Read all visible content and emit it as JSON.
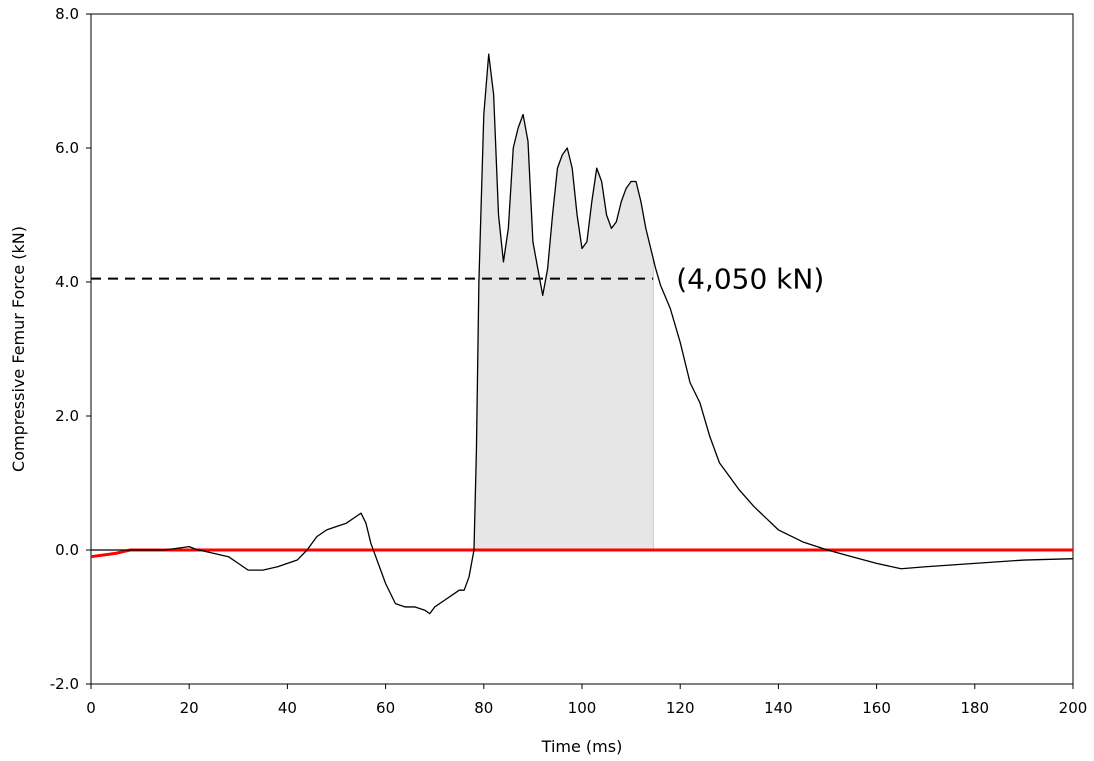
{
  "chart_data": {
    "type": "line",
    "title": "",
    "xlabel": "Time (ms)",
    "ylabel": "Compressive Femur Force (kN)",
    "xlim": [
      0,
      200
    ],
    "ylim": [
      -2.0,
      8.0
    ],
    "x_ticks": [
      0,
      20,
      40,
      60,
      80,
      100,
      120,
      140,
      160,
      180,
      200
    ],
    "x_tick_labels": [
      "0",
      "20",
      "40",
      "60",
      "80",
      "100",
      "120",
      "140",
      "160",
      "180",
      "200"
    ],
    "y_ticks": [
      -2.0,
      0.0,
      2.0,
      4.0,
      6.0,
      8.0
    ],
    "y_tick_labels": [
      "-2.0",
      "0.0",
      "2.0",
      "4.0",
      "6.0",
      "8.0"
    ],
    "grid": false,
    "legend": "none",
    "colors": {
      "force_line": "#000000",
      "zero_line": "#ff0000",
      "shaded_area": "#e6e6e6",
      "threshold_line": "#000000"
    },
    "series": [
      {
        "x": [
          0,
          5,
          10,
          15,
          18,
          20,
          21,
          22,
          25,
          28,
          30,
          32,
          35,
          38,
          40,
          42,
          44,
          46,
          48,
          50,
          52,
          54,
          55,
          56,
          57,
          58,
          59,
          60,
          62,
          64,
          66,
          68,
          69,
          70,
          72,
          74,
          75,
          76,
          77,
          78,
          78.5,
          79,
          80,
          81,
          82,
          83,
          84,
          85,
          86,
          87,
          88,
          89,
          90,
          91,
          92,
          93,
          94,
          95,
          96,
          97,
          98,
          99,
          100,
          101,
          102,
          103,
          104,
          105,
          106,
          107,
          108,
          109,
          110,
          111,
          112,
          113,
          114,
          115,
          116,
          118,
          120,
          122,
          124,
          126,
          128,
          130,
          132,
          135,
          140,
          145,
          150,
          155,
          160,
          165,
          170,
          180,
          190,
          200
        ],
        "y": [
          0.0,
          0.0,
          0.0,
          0.0,
          0.03,
          0.05,
          0.02,
          0.0,
          -0.05,
          -0.1,
          -0.2,
          -0.3,
          -0.3,
          -0.25,
          -0.2,
          -0.15,
          0.0,
          0.2,
          0.3,
          0.35,
          0.4,
          0.5,
          0.55,
          0.4,
          0.1,
          -0.1,
          -0.3,
          -0.5,
          -0.8,
          -0.85,
          -0.85,
          -0.9,
          -0.95,
          -0.85,
          -0.75,
          -0.65,
          -0.6,
          -0.6,
          -0.4,
          0.0,
          1.5,
          4.0,
          6.5,
          7.4,
          6.8,
          5.0,
          4.3,
          4.8,
          6.0,
          6.3,
          6.5,
          6.1,
          4.6,
          4.2,
          3.8,
          4.2,
          5.0,
          5.7,
          5.9,
          6.0,
          5.7,
          5.0,
          4.5,
          4.6,
          5.2,
          5.7,
          5.5,
          5.0,
          4.8,
          4.9,
          5.2,
          5.4,
          5.5,
          5.5,
          5.2,
          4.8,
          4.5,
          4.2,
          3.95,
          3.6,
          3.1,
          2.5,
          2.2,
          1.7,
          1.3,
          1.1,
          0.9,
          0.65,
          0.3,
          0.12,
          0.0,
          -0.1,
          -0.2,
          -0.28,
          -0.25,
          -0.2,
          -0.15,
          -0.13
        ]
      }
    ],
    "zero_series": {
      "x": [
        0,
        5,
        8,
        200
      ],
      "y": [
        -0.1,
        -0.05,
        0.0,
        0.0
      ]
    },
    "shaded_region": {
      "x_start": 78,
      "x_end": 114.5
    },
    "threshold": {
      "y": 4.05,
      "x_start": 0,
      "x_end": 114.5
    },
    "annotation": {
      "text": "(4,050 kN)",
      "x": 120,
      "y": 4.05
    }
  }
}
